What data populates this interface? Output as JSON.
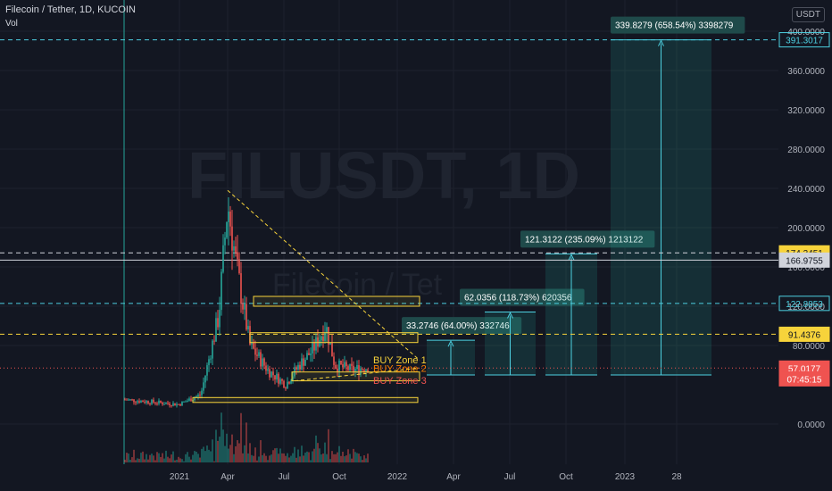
{
  "header": {
    "title": "Filecoin / Tether, 1D, KUCOIN",
    "indicator": "Vol",
    "currency": "USDT"
  },
  "watermark": {
    "symbol": "FILUSDT, 1D",
    "name": "Filecoin / Tet"
  },
  "colors": {
    "bg": "#131722",
    "grid": "#1e222d",
    "teal": "#26a69a",
    "red": "#ef5350",
    "yellow": "#f7d33b",
    "cyan_line": "#4dd0e1",
    "orange": "#f57c00"
  },
  "chart_data": {
    "type": "candlestick",
    "ylim": [
      -40,
      420
    ],
    "y_ticks": [
      "0.0000",
      "80.0000",
      "120.0000",
      "160.0000",
      "200.0000",
      "240.0000",
      "280.0000",
      "320.0000",
      "360.0000",
      "400.0000"
    ],
    "x_ticks": [
      "2021",
      "Apr",
      "Jul",
      "Oct",
      "2022",
      "Apr",
      "Jul",
      "Oct",
      "2023",
      "28"
    ],
    "price_labels": [
      {
        "text": "391.3017",
        "value": 391.3017,
        "style": "outline"
      },
      {
        "text": "174.3451",
        "value": 174.3451,
        "style": "yellow"
      },
      {
        "text": "166.9755",
        "value": 166.9755,
        "style": "white"
      },
      {
        "text": "122.8853",
        "value": 122.8853,
        "style": "outline"
      },
      {
        "text": "91.4376",
        "value": 91.4376,
        "style": "yellow"
      },
      {
        "text": "57.0177",
        "value": 57.0177,
        "style": "red"
      },
      {
        "text": "07:45:15",
        "value": 46,
        "style": "red"
      }
    ],
    "zones": [
      {
        "label": "BUY Zone 1",
        "low": 53,
        "high": 62
      },
      {
        "label": "BUY Zone 2",
        "low": 48,
        "high": 53
      },
      {
        "label": "BUY Zone 3",
        "low": 37,
        "high": 46
      }
    ],
    "targets": [
      {
        "label": "33.2746 (64.00%) 332746",
        "top": 85.3
      },
      {
        "label": "62.0356 (118.73%) 620356",
        "top": 114.1
      },
      {
        "label": "121.3122 (235.09%) 1213122",
        "top": 173.3
      },
      {
        "label": "339.8279 (658.54%) 3398279",
        "top": 391.3
      }
    ]
  }
}
